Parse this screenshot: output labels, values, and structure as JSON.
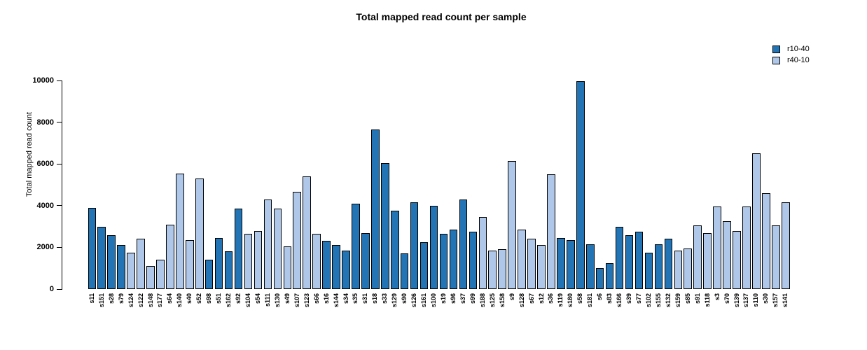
{
  "title": "Total mapped read count per sample",
  "legend": {
    "items": [
      {
        "label": "r10-40",
        "color": "#2274B5"
      },
      {
        "label": "r40-10",
        "color": "#AFC7E8"
      }
    ]
  },
  "colors": {
    "dark_series": "#2274B5",
    "light_series": "#AFC7E8",
    "bar_border": "#000000",
    "axis": "#000000",
    "background": "#FFFFFF"
  },
  "chart_data": {
    "type": "bar",
    "title": "Total mapped read count per sample",
    "xlabel": "",
    "ylabel": "Total mapped read count",
    "ylim": [
      0,
      10000
    ],
    "yticks": [
      0,
      2000,
      4000,
      6000,
      8000,
      10000
    ],
    "grid": false,
    "legend_position": "top-right",
    "series_names": [
      "r10-40",
      "r40-10"
    ],
    "samples": [
      {
        "label": "s11",
        "series": "r10-40",
        "value": 3900
      },
      {
        "label": "s151",
        "series": "r10-40",
        "value": 3000
      },
      {
        "label": "s28",
        "series": "r10-40",
        "value": 2600
      },
      {
        "label": "s79",
        "series": "r10-40",
        "value": 2100
      },
      {
        "label": "s124",
        "series": "r40-10",
        "value": 1750
      },
      {
        "label": "s122",
        "series": "r40-10",
        "value": 2400
      },
      {
        "label": "s148",
        "series": "r40-10",
        "value": 1100
      },
      {
        "label": "s177",
        "series": "r40-10",
        "value": 1400
      },
      {
        "label": "s64",
        "series": "r40-10",
        "value": 3100
      },
      {
        "label": "s140",
        "series": "r40-10",
        "value": 5550
      },
      {
        "label": "s40",
        "series": "r40-10",
        "value": 2350
      },
      {
        "label": "s52",
        "series": "r40-10",
        "value": 5300
      },
      {
        "label": "s98",
        "series": "r10-40",
        "value": 1400
      },
      {
        "label": "s51",
        "series": "r10-40",
        "value": 2450
      },
      {
        "label": "s162",
        "series": "r10-40",
        "value": 1800
      },
      {
        "label": "s92",
        "series": "r10-40",
        "value": 3850
      },
      {
        "label": "s104",
        "series": "r40-10",
        "value": 2650
      },
      {
        "label": "s54",
        "series": "r40-10",
        "value": 2800
      },
      {
        "label": "s111",
        "series": "r40-10",
        "value": 4300
      },
      {
        "label": "s130",
        "series": "r40-10",
        "value": 3850
      },
      {
        "label": "s49",
        "series": "r40-10",
        "value": 2050
      },
      {
        "label": "s107",
        "series": "r40-10",
        "value": 4650
      },
      {
        "label": "s123",
        "series": "r40-10",
        "value": 5400
      },
      {
        "label": "s66",
        "series": "r40-10",
        "value": 2650
      },
      {
        "label": "s16",
        "series": "r10-40",
        "value": 2300
      },
      {
        "label": "s144",
        "series": "r10-40",
        "value": 2100
      },
      {
        "label": "s34",
        "series": "r10-40",
        "value": 1850
      },
      {
        "label": "s35",
        "series": "r10-40",
        "value": 4100
      },
      {
        "label": "s31",
        "series": "r10-40",
        "value": 2700
      },
      {
        "label": "s18",
        "series": "r10-40",
        "value": 7650
      },
      {
        "label": "s33",
        "series": "r10-40",
        "value": 6050
      },
      {
        "label": "s129",
        "series": "r10-40",
        "value": 3750
      },
      {
        "label": "s90",
        "series": "r10-40",
        "value": 1700
      },
      {
        "label": "s126",
        "series": "r10-40",
        "value": 4150
      },
      {
        "label": "s161",
        "series": "r10-40",
        "value": 2250
      },
      {
        "label": "s100",
        "series": "r10-40",
        "value": 4000
      },
      {
        "label": "s19",
        "series": "r10-40",
        "value": 2650
      },
      {
        "label": "s96",
        "series": "r10-40",
        "value": 2850
      },
      {
        "label": "s37",
        "series": "r10-40",
        "value": 4300
      },
      {
        "label": "s99",
        "series": "r10-40",
        "value": 2750
      },
      {
        "label": "s188",
        "series": "r40-10",
        "value": 3450
      },
      {
        "label": "s125",
        "series": "r40-10",
        "value": 1850
      },
      {
        "label": "s158",
        "series": "r40-10",
        "value": 1900
      },
      {
        "label": "s9",
        "series": "r40-10",
        "value": 6150
      },
      {
        "label": "s128",
        "series": "r40-10",
        "value": 2850
      },
      {
        "label": "s67",
        "series": "r40-10",
        "value": 2400
      },
      {
        "label": "s12",
        "series": "r40-10",
        "value": 2100
      },
      {
        "label": "s36",
        "series": "r40-10",
        "value": 5500
      },
      {
        "label": "s119",
        "series": "r10-40",
        "value": 2450
      },
      {
        "label": "s180",
        "series": "r10-40",
        "value": 2350
      },
      {
        "label": "s58",
        "series": "r10-40",
        "value": 9950
      },
      {
        "label": "s181",
        "series": "r10-40",
        "value": 2150
      },
      {
        "label": "s6",
        "series": "r10-40",
        "value": 1000
      },
      {
        "label": "s83",
        "series": "r10-40",
        "value": 1250
      },
      {
        "label": "s166",
        "series": "r10-40",
        "value": 3000
      },
      {
        "label": "s39",
        "series": "r10-40",
        "value": 2600
      },
      {
        "label": "s77",
        "series": "r10-40",
        "value": 2750
      },
      {
        "label": "s102",
        "series": "r10-40",
        "value": 1750
      },
      {
        "label": "s155",
        "series": "r10-40",
        "value": 2150
      },
      {
        "label": "s132",
        "series": "r10-40",
        "value": 2400
      },
      {
        "label": "s159",
        "series": "r40-10",
        "value": 1850
      },
      {
        "label": "s85",
        "series": "r40-10",
        "value": 1950
      },
      {
        "label": "s91",
        "series": "r40-10",
        "value": 3050
      },
      {
        "label": "s118",
        "series": "r40-10",
        "value": 2700
      },
      {
        "label": "s3",
        "series": "r40-10",
        "value": 3950
      },
      {
        "label": "s70",
        "series": "r40-10",
        "value": 3250
      },
      {
        "label": "s139",
        "series": "r40-10",
        "value": 2800
      },
      {
        "label": "s137",
        "series": "r40-10",
        "value": 3950
      },
      {
        "label": "s110",
        "series": "r40-10",
        "value": 6500
      },
      {
        "label": "s30",
        "series": "r40-10",
        "value": 4600
      },
      {
        "label": "s157",
        "series": "r40-10",
        "value": 3050
      },
      {
        "label": "s141",
        "series": "r40-10",
        "value": 4150
      }
    ]
  }
}
